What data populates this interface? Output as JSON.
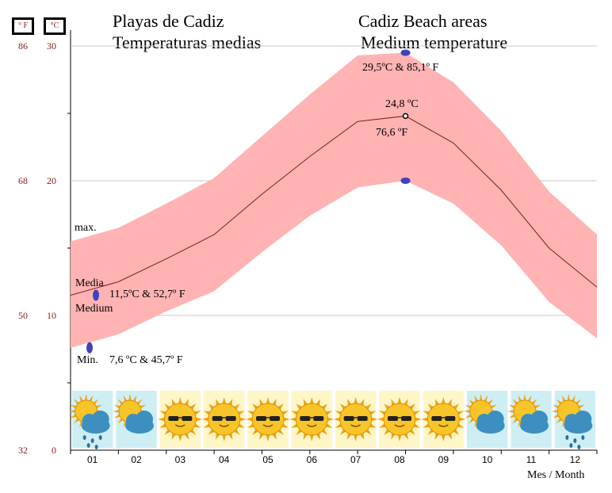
{
  "header": {
    "unit_f": "° F",
    "unit_c": "°C",
    "title_es_1": "Playas de Cadiz",
    "title_es_2": "Temperaturas medias",
    "title_en_1": "Cadiz Beach areas",
    "title_en_2": "Medium temperature"
  },
  "annotations": {
    "max_label": "max.",
    "media_label": "Media",
    "medium_label": "Medium",
    "min_label": "Min.",
    "min_value_text": "7,6 ºC  &  45,7º F",
    "mean_value_text": "11,5ºC  &  52,7º F",
    "peak_max_text": "29,5ºC  &  85,1º F",
    "peak_mean_c_text": "24,8 ºC",
    "peak_mean_f_text": "76,6 ºF",
    "xlabel": "Mes / Month"
  },
  "chart_data": {
    "type": "area",
    "x": [
      "01",
      "02",
      "03",
      "04",
      "05",
      "06",
      "07",
      "08",
      "09",
      "10",
      "11",
      "12"
    ],
    "ylim": [
      0,
      30
    ],
    "yticks_c": [
      "0",
      "10",
      "20",
      "30"
    ],
    "yticks_f": [
      "32",
      "50",
      "68",
      "86"
    ],
    "grid": true,
    "series": [
      {
        "name": "max.",
        "values": [
          15.5,
          16.5,
          18.3,
          20.2,
          23.3,
          26.4,
          29.3,
          29.5,
          27.3,
          23.7,
          19.2,
          16.0
        ]
      },
      {
        "name": "Media",
        "values": [
          11.5,
          12.5,
          14.2,
          16.0,
          19.0,
          21.8,
          24.4,
          24.8,
          22.8,
          19.3,
          15.0,
          12.1
        ]
      },
      {
        "name": "Min.",
        "values": [
          7.6,
          8.6,
          10.3,
          11.8,
          14.7,
          17.4,
          19.5,
          20.0,
          18.3,
          15.2,
          11.0,
          8.3
        ]
      }
    ],
    "highlight_points": [
      {
        "label": "max. 08",
        "x": "08",
        "y": 29.5
      },
      {
        "label": "Media 08",
        "x": "08",
        "y": 24.8
      },
      {
        "label": "Min. 08",
        "x": "08",
        "y": 20.0
      },
      {
        "label": "Media 01",
        "x": "01",
        "y": 11.5
      },
      {
        "label": "Min. 01",
        "x": "01",
        "y": 7.6
      }
    ],
    "weather_icons": [
      "sun-cloud-rain",
      "sun-cloud",
      "sun",
      "sun",
      "sun",
      "sun",
      "sun",
      "sun",
      "sun",
      "sun-cloud",
      "sun-cloud",
      "sun-cloud-rain"
    ],
    "colors": {
      "band": "#ffb3b3",
      "line": "#8b1a1a",
      "grid": "#c8c8c8",
      "marker": "#4040c0",
      "tick": "#8b1a1a"
    }
  }
}
